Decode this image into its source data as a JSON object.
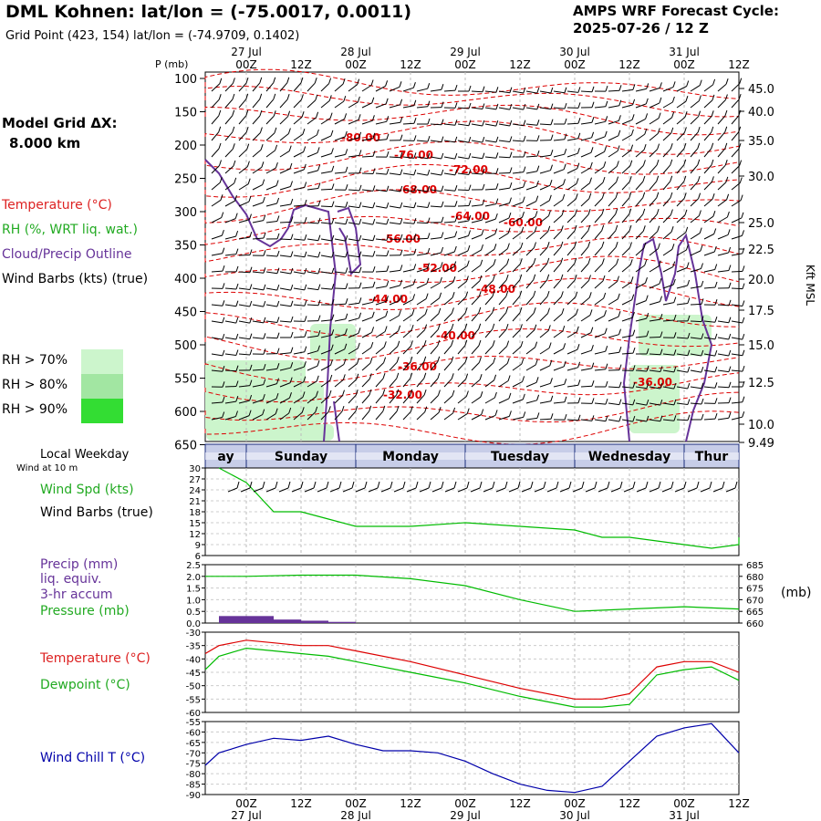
{
  "header": {
    "title": "DML Kohnen:  lat/lon = (-75.0017, 0.0011)",
    "grid_point": "Grid Point (423, 154) lat/lon = (-74.9709, 0.1402)",
    "cycle_label": "AMPS WRF Forecast Cycle:",
    "cycle_value": "2025-07-26 / 12  Z"
  },
  "model_grid": {
    "label": "Model Grid ΔX:",
    "value": "8.000 km"
  },
  "legend_left": {
    "temperature": "Temperature (°C)",
    "rh": "RH (%, WRT liq. wat.)",
    "cloud": "Cloud/Precip Outline",
    "wind": "Wind Barbs (kts) (true)",
    "rh70": "RH > 70%",
    "rh80": "RH > 80%",
    "rh90": "RH > 90%"
  },
  "colors": {
    "temperature": "#dd0000",
    "rh": "#22aa22",
    "cloud": "#663399",
    "dewpoint": "#00bb00",
    "windchill": "#0000aa",
    "rh70": "#ccf5cc",
    "rh80": "#a2e6a2",
    "rh90": "#33dd33"
  },
  "time_axis": {
    "top_dates": [
      "27 Jul",
      "28 Jul",
      "29 Jul",
      "30 Jul",
      "31 Jul"
    ],
    "hour_labels": [
      "00Z",
      "12Z",
      "00Z",
      "12Z",
      "00Z",
      "12Z",
      "00Z",
      "12Z",
      "00Z",
      "12Z"
    ],
    "weekdays": [
      "ay",
      "Sunday",
      "Monday",
      "Tuesday",
      "Wednesday",
      "Thur"
    ],
    "local_weekday_label": "Local Weekday"
  },
  "chart_data": [
    {
      "type": "line",
      "title": "",
      "ylabel": "P (mb)",
      "y2label": "Kft MSL",
      "ylim": [
        100,
        680
      ],
      "pressure_ticks": [
        "100",
        "150",
        "200",
        "250",
        "300",
        "350",
        "400",
        "450",
        "500",
        "550",
        "600",
        "650"
      ],
      "height_ticks": [
        "45.0",
        "40.0",
        "35.0",
        "30.0",
        "25.0",
        "22.5",
        "20.0",
        "17.5",
        "15.0",
        "12.5",
        "10.0",
        "9.49"
      ],
      "temperature_contour_labels": [
        "-80.00",
        "-76.00",
        "-72.00",
        "-68.00",
        "-64.00",
        "-60.00",
        "-56.00",
        "-52.00",
        "-48.00",
        "-44.00",
        "-40.00",
        "-36.00",
        "-32.00",
        "-36.00"
      ]
    },
    {
      "type": "line",
      "title": "Wind at 10 m",
      "series": [
        {
          "name": "Wind Spd (kts)",
          "x": [
            -6,
            0,
            6,
            12,
            18,
            24,
            36,
            48,
            60,
            72,
            78,
            84,
            96,
            102,
            108,
            114
          ],
          "values": [
            30,
            26,
            18,
            18,
            16,
            14,
            14,
            15,
            14,
            13,
            11,
            11,
            9,
            8,
            9,
            11
          ]
        }
      ],
      "ylabels": [
        "Wind Spd (kts)",
        "Wind Barbs (true)"
      ],
      "yticks": [
        "30",
        "27",
        "24",
        "21",
        "18",
        "15",
        "12",
        "9",
        "6"
      ],
      "ylim": [
        6,
        30
      ]
    },
    {
      "type": "line",
      "ylabels": [
        "Precip (mm)",
        "liq. equiv.",
        "3-hr accum",
        "Pressure (mb)"
      ],
      "y2label": "(mb)",
      "yticks": [
        "2.5",
        "2.0",
        "1.5",
        "1.0",
        "0.5",
        "0.0"
      ],
      "y2ticks": [
        "685",
        "680",
        "675",
        "670",
        "665",
        "660"
      ],
      "series": [
        {
          "name": "Pressure (mb)",
          "x": [
            -12,
            0,
            12,
            24,
            36,
            48,
            60,
            72,
            84,
            96,
            108
          ],
          "values": [
            680,
            680,
            680.5,
            680.5,
            679,
            676,
            670,
            665,
            666,
            667,
            666
          ]
        },
        {
          "name": "Precip (mm)",
          "x": [
            -3,
            3,
            9,
            15,
            21
          ],
          "values": [
            0.3,
            0.3,
            0.15,
            0.1,
            0.05
          ]
        }
      ]
    },
    {
      "type": "line",
      "ylabels": [
        "Temperature (°C)",
        "Dewpoint (°C)"
      ],
      "yticks": [
        "-30",
        "-35",
        "-40",
        "-45",
        "-50",
        "-55",
        "-60"
      ],
      "ylim": [
        -60,
        -30
      ],
      "series": [
        {
          "name": "Temperature (°C)",
          "x": [
            -12,
            -6,
            0,
            6,
            12,
            18,
            24,
            36,
            48,
            60,
            72,
            78,
            84,
            90,
            96,
            102,
            108
          ],
          "values": [
            -38,
            -35,
            -33,
            -34,
            -35,
            -35,
            -37,
            -41,
            -46,
            -51,
            -55,
            -55,
            -53,
            -43,
            -41,
            -41,
            -45
          ]
        },
        {
          "name": "Dewpoint (°C)",
          "x": [
            -12,
            -6,
            0,
            6,
            12,
            18,
            24,
            36,
            48,
            60,
            72,
            78,
            84,
            90,
            96,
            102,
            108
          ],
          "values": [
            -44,
            -39,
            -36,
            -37,
            -38,
            -39,
            -41,
            -45,
            -49,
            -54,
            -58,
            -58,
            -57,
            -46,
            -44,
            -43,
            -48
          ]
        }
      ]
    },
    {
      "type": "line",
      "ylabels": [
        "Wind Chill T (°C)"
      ],
      "yticks": [
        "-55",
        "-60",
        "-65",
        "-70",
        "-75",
        "-80",
        "-85",
        "-90"
      ],
      "ylim": [
        -90,
        -55
      ],
      "series": [
        {
          "name": "Wind Chill T (°C)",
          "x": [
            -12,
            -6,
            0,
            6,
            12,
            18,
            24,
            30,
            36,
            42,
            48,
            54,
            60,
            66,
            72,
            78,
            84,
            90,
            96,
            102,
            108
          ],
          "values": [
            -76,
            -70,
            -66,
            -63,
            -64,
            -62,
            -66,
            -69,
            -69,
            -70,
            -74,
            -80,
            -85,
            -88,
            -89,
            -86,
            -74,
            -62,
            -58,
            -56,
            -70
          ]
        }
      ]
    }
  ]
}
